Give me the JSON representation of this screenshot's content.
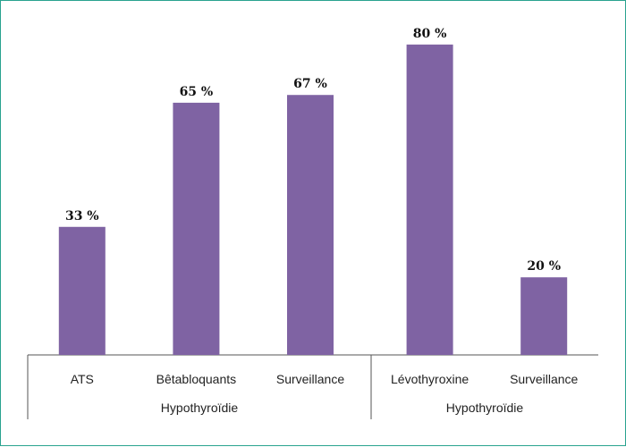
{
  "chart_data": {
    "type": "bar",
    "categories": [
      "ATS",
      "Bêtabloquants",
      "Surveillance",
      "Lévothyroxine",
      "Surveillance"
    ],
    "values": [
      33,
      65,
      67,
      80,
      20
    ],
    "value_labels": [
      "33 %",
      "65 %",
      "67 %",
      "80 %",
      "20 %"
    ],
    "groups": [
      {
        "label": "Hypothyroïdie",
        "categories": [
          0,
          1,
          2
        ]
      },
      {
        "label": "Hypothyroïdie",
        "categories": [
          3,
          4
        ]
      }
    ],
    "ylim": [
      0,
      100
    ],
    "grid": false,
    "bar_color": "#7f63a3",
    "border_color": "#2aa38f"
  }
}
